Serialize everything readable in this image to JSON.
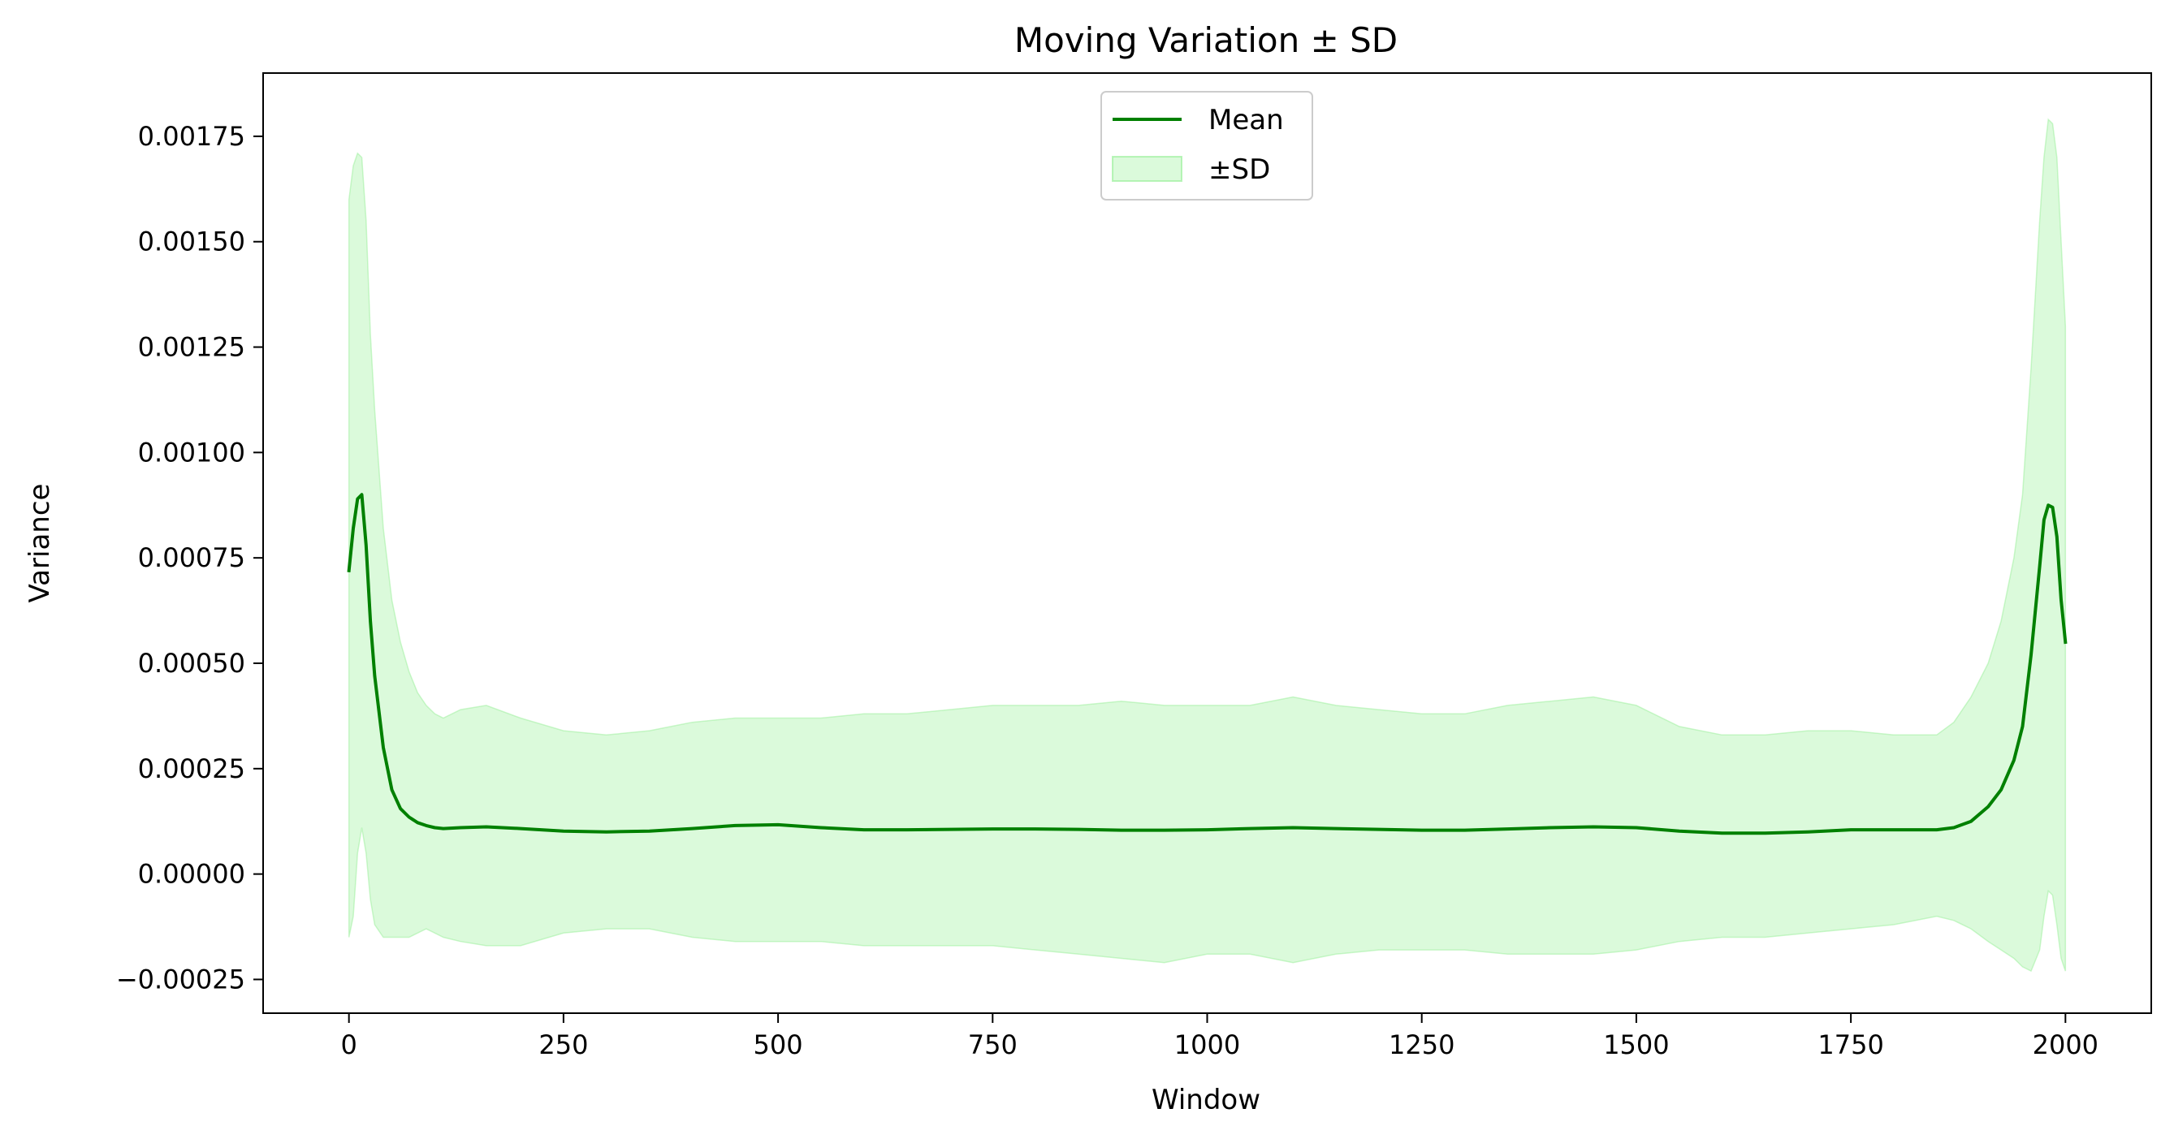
{
  "chart_data": {
    "type": "line",
    "title": "Moving Variation ± SD",
    "xlabel": "Window",
    "ylabel": "Variance",
    "xlim": [
      -100,
      2100
    ],
    "ylim": [
      -0.00033,
      0.0019
    ],
    "xticks": [
      0,
      250,
      500,
      750,
      1000,
      1250,
      1500,
      1750,
      2000
    ],
    "xtick_labels": [
      "0",
      "250",
      "500",
      "750",
      "1000",
      "1250",
      "1500",
      "1750",
      "2000"
    ],
    "yticks": [
      -0.00025,
      0,
      0.00025,
      0.0005,
      0.00075,
      0.001,
      0.00125,
      0.0015,
      0.00175
    ],
    "ytick_labels": [
      "−0.00025",
      "0.00000",
      "0.00025",
      "0.00050",
      "0.00075",
      "0.00100",
      "0.00125",
      "0.00150",
      "0.00175"
    ],
    "grid": false,
    "legend_position": "top-center",
    "legend": [
      {
        "label": "Mean",
        "kind": "line",
        "color": "#008000"
      },
      {
        "label": "±SD",
        "kind": "band",
        "color": "#90ee90"
      }
    ],
    "series": [
      {
        "name": "Mean",
        "color": "#008000",
        "x": [
          0,
          5,
          10,
          15,
          20,
          25,
          30,
          40,
          50,
          60,
          70,
          80,
          90,
          100,
          110,
          130,
          160,
          200,
          250,
          300,
          350,
          400,
          450,
          500,
          550,
          600,
          650,
          700,
          750,
          800,
          850,
          900,
          950,
          1000,
          1050,
          1100,
          1150,
          1200,
          1250,
          1300,
          1350,
          1400,
          1450,
          1500,
          1550,
          1600,
          1650,
          1700,
          1750,
          1800,
          1850,
          1870,
          1890,
          1910,
          1925,
          1940,
          1950,
          1960,
          1970,
          1975,
          1980,
          1985,
          1990,
          1995,
          2000
        ],
        "y": [
          0.00072,
          0.00082,
          0.00089,
          0.0009,
          0.00078,
          0.0006,
          0.00047,
          0.0003,
          0.0002,
          0.000155,
          0.000135,
          0.000122,
          0.000115,
          0.00011,
          0.000108,
          0.00011,
          0.000112,
          0.000108,
          0.000102,
          0.0001,
          0.000102,
          0.000108,
          0.000115,
          0.000117,
          0.00011,
          0.000105,
          0.000105,
          0.000106,
          0.000107,
          0.000107,
          0.000106,
          0.000104,
          0.000104,
          0.000105,
          0.000108,
          0.00011,
          0.000108,
          0.000106,
          0.000104,
          0.000104,
          0.000107,
          0.00011,
          0.000112,
          0.00011,
          0.000102,
          9.7e-05,
          9.7e-05,
          0.0001,
          0.000105,
          0.000105,
          0.000105,
          0.00011,
          0.000125,
          0.00016,
          0.0002,
          0.00027,
          0.00035,
          0.00052,
          0.00073,
          0.00084,
          0.000875,
          0.00087,
          0.0008,
          0.00065,
          0.00055
        ]
      },
      {
        "name": "±SD",
        "color": "#90ee90",
        "x": [
          0,
          5,
          10,
          15,
          20,
          25,
          30,
          40,
          50,
          60,
          70,
          80,
          90,
          100,
          110,
          130,
          160,
          200,
          250,
          300,
          350,
          400,
          450,
          500,
          550,
          600,
          650,
          700,
          750,
          800,
          850,
          900,
          950,
          1000,
          1050,
          1100,
          1150,
          1200,
          1250,
          1300,
          1350,
          1400,
          1450,
          1500,
          1550,
          1600,
          1650,
          1700,
          1750,
          1800,
          1850,
          1870,
          1890,
          1910,
          1925,
          1940,
          1950,
          1960,
          1970,
          1975,
          1980,
          1985,
          1990,
          1995,
          2000
        ],
        "upper": [
          0.0016,
          0.00168,
          0.00171,
          0.0017,
          0.00155,
          0.00128,
          0.0011,
          0.00082,
          0.00065,
          0.00055,
          0.00048,
          0.00043,
          0.0004,
          0.00038,
          0.00037,
          0.00039,
          0.0004,
          0.00037,
          0.00034,
          0.00033,
          0.00034,
          0.00036,
          0.00037,
          0.00037,
          0.00037,
          0.00038,
          0.00038,
          0.00039,
          0.0004,
          0.0004,
          0.0004,
          0.00041,
          0.0004,
          0.0004,
          0.0004,
          0.00042,
          0.0004,
          0.00039,
          0.00038,
          0.00038,
          0.0004,
          0.00041,
          0.00042,
          0.0004,
          0.00035,
          0.00033,
          0.00033,
          0.00034,
          0.00034,
          0.00033,
          0.00033,
          0.00036,
          0.00042,
          0.0005,
          0.0006,
          0.00075,
          0.0009,
          0.0012,
          0.00155,
          0.0017,
          0.00179,
          0.00178,
          0.0017,
          0.0015,
          0.0013
        ],
        "lower": [
          -0.00015,
          -0.0001,
          5e-05,
          0.00011,
          5e-05,
          -6e-05,
          -0.00012,
          -0.00015,
          -0.00015,
          -0.00015,
          -0.00015,
          -0.00014,
          -0.00013,
          -0.00014,
          -0.00015,
          -0.00016,
          -0.00017,
          -0.00017,
          -0.00014,
          -0.00013,
          -0.00013,
          -0.00015,
          -0.00016,
          -0.00016,
          -0.00016,
          -0.00017,
          -0.00017,
          -0.00017,
          -0.00017,
          -0.00018,
          -0.00019,
          -0.0002,
          -0.00021,
          -0.00019,
          -0.00019,
          -0.00021,
          -0.00019,
          -0.00018,
          -0.00018,
          -0.00018,
          -0.00019,
          -0.00019,
          -0.00019,
          -0.00018,
          -0.00016,
          -0.00015,
          -0.00015,
          -0.00014,
          -0.00013,
          -0.00012,
          -0.0001,
          -0.00011,
          -0.00013,
          -0.00016,
          -0.00018,
          -0.0002,
          -0.00022,
          -0.00023,
          -0.00018,
          -0.0001,
          -4e-05,
          -5e-05,
          -0.00012,
          -0.0002,
          -0.00023
        ]
      }
    ]
  }
}
